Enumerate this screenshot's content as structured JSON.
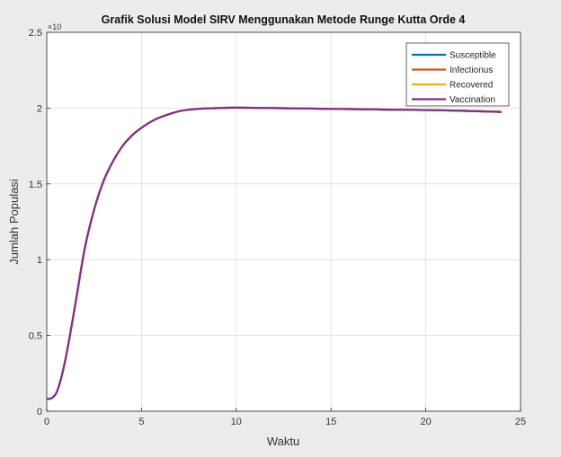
{
  "chart_data": {
    "type": "line",
    "title": "Grafik Solusi Model SIRV Menggunakan Metode Runge Kutta Orde 4",
    "xlabel": "Waktu",
    "ylabel": "Jumlah Populasi",
    "y_exponent_label": "×10",
    "xlim": [
      0,
      25
    ],
    "ylim": [
      0,
      2.5
    ],
    "xticks": [
      0,
      5,
      10,
      15,
      20,
      25
    ],
    "yticks": [
      0,
      0.5,
      1,
      1.5,
      2,
      2.5
    ],
    "xtick_labels": [
      "0",
      "5",
      "10",
      "15",
      "20",
      "25"
    ],
    "ytick_labels": [
      "0",
      "0.5",
      "1",
      "1.5",
      "2",
      "2.5"
    ],
    "grid": true,
    "legend_position": "top-right",
    "series": [
      {
        "name": "Susceptible",
        "color": "#0072BD",
        "x": [
          0,
          0.3,
          0.6,
          1,
          1.5,
          2,
          2.5,
          3,
          3.5,
          4,
          4.5,
          5,
          5.5,
          6,
          7,
          8,
          9,
          10,
          12,
          15,
          18,
          21,
          24
        ],
        "y": [
          0.08,
          0.09,
          0.15,
          0.35,
          0.7,
          1.07,
          1.33,
          1.52,
          1.65,
          1.75,
          1.82,
          1.87,
          1.91,
          1.94,
          1.98,
          1.995,
          2.0,
          2.003,
          2.0,
          1.995,
          1.99,
          1.985,
          1.975
        ]
      },
      {
        "name": "Infectionus",
        "color": "#D95319",
        "x": [
          0,
          0.3,
          0.6,
          1,
          1.5,
          2,
          2.5,
          3,
          3.5,
          4,
          4.5,
          5,
          5.5,
          6,
          7,
          8,
          9,
          10,
          12,
          15,
          18,
          21,
          24
        ],
        "y": [
          0.08,
          0.09,
          0.15,
          0.35,
          0.7,
          1.07,
          1.33,
          1.52,
          1.65,
          1.75,
          1.82,
          1.87,
          1.91,
          1.94,
          1.98,
          1.995,
          2.0,
          2.003,
          2.0,
          1.995,
          1.99,
          1.985,
          1.975
        ]
      },
      {
        "name": "Recovered",
        "color": "#EDB120",
        "x": [
          0,
          0.3,
          0.6,
          1,
          1.5,
          2,
          2.5,
          3,
          3.5,
          4,
          4.5,
          5,
          5.5,
          6,
          7,
          8,
          9,
          10,
          12,
          15,
          18,
          21,
          24
        ],
        "y": [
          0.08,
          0.09,
          0.15,
          0.35,
          0.7,
          1.07,
          1.33,
          1.52,
          1.65,
          1.75,
          1.82,
          1.87,
          1.91,
          1.94,
          1.98,
          1.995,
          2.0,
          2.003,
          2.0,
          1.995,
          1.99,
          1.985,
          1.975
        ]
      },
      {
        "name": "Vaccination",
        "color": "#7E2F8E",
        "x": [
          0,
          0.3,
          0.6,
          1,
          1.5,
          2,
          2.5,
          3,
          3.5,
          4,
          4.5,
          5,
          5.5,
          6,
          7,
          8,
          9,
          10,
          12,
          15,
          18,
          21,
          24
        ],
        "y": [
          0.08,
          0.09,
          0.15,
          0.35,
          0.7,
          1.07,
          1.33,
          1.52,
          1.65,
          1.75,
          1.82,
          1.87,
          1.91,
          1.94,
          1.98,
          1.995,
          2.0,
          2.003,
          2.0,
          1.995,
          1.99,
          1.985,
          1.975
        ]
      }
    ]
  }
}
